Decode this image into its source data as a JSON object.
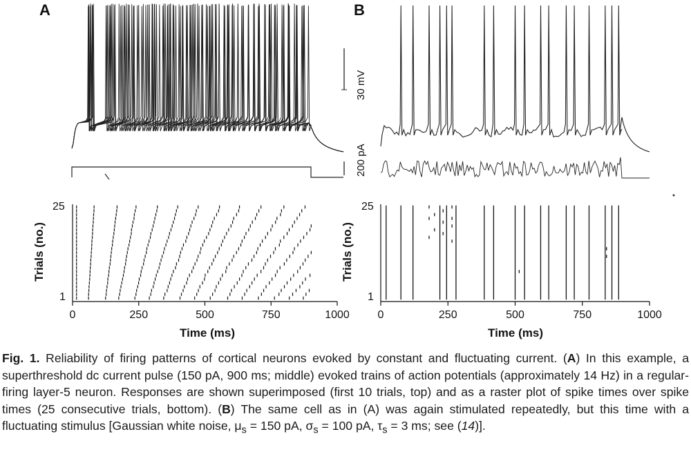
{
  "panel_a": {
    "letter": "A"
  },
  "panel_b": {
    "letter": "B"
  },
  "scale_bars": {
    "voltage": "30 mV",
    "current": "200 pA"
  },
  "raster_axes": {
    "ylabel": "Trials (no.)",
    "xlabel": "Time (ms)",
    "yticks": [
      "1",
      "25"
    ],
    "xticks": [
      "0",
      "250",
      "500",
      "750",
      "1000"
    ]
  },
  "caption": {
    "label": "Fig. 1.",
    "t1": " Reliability of firing patterns of cortical neurons evoked by constant and fluctuating current. (",
    "a1": "A",
    "t2": ") In this example, a superthreshold dc current pulse (150 pA, 900 ms; middle) evoked trains of action potentials (approximately 14 Hz) in a regular-firing layer-5 neuron. Responses are shown superimposed (first 10 trials, top) and as a raster plot of spike times over spike times (25 consecutive trials, bottom). (",
    "b1": "B",
    "t3": ") The same cell as in (A) was again stimulated repeatedly, but this time with a fluctuating stimulus [Gaussian white noise, ",
    "mu": "μ",
    "mu_sub": "s",
    "mu_val": " = 150 pA, ",
    "sigma": "σ",
    "sigma_sub": "s",
    "sigma_val": " = 100 pA, ",
    "tau": "τ",
    "tau_sub": "s",
    "tau_val": " = 3 ms; see (",
    "ref": "14",
    "end": ")]."
  },
  "chart_data": [
    {
      "type": "scatter",
      "panel": "A",
      "title": "",
      "xlabel": "Time (ms)",
      "ylabel": "Trials (no.)",
      "xlim": [
        0,
        1000
      ],
      "ylim": [
        1,
        25
      ],
      "stimulus": "dc current pulse, 150 pA, 900 ms",
      "n_trials": 25,
      "spike_times_trial_1": [
        15,
        60,
        125,
        175,
        235,
        290,
        345,
        405,
        460,
        520,
        585,
        640,
        700,
        765,
        820,
        870
      ],
      "drift_per_trial_ms": [
        0,
        1,
        2,
        3,
        4,
        5,
        6,
        7,
        8,
        9,
        10,
        11,
        12,
        13,
        14,
        15
      ]
    },
    {
      "type": "scatter",
      "panel": "B",
      "title": "",
      "xlabel": "Time (ms)",
      "ylabel": "Trials (no.)",
      "xlim": [
        0,
        1000
      ],
      "ylim": [
        1,
        25
      ],
      "stimulus": "Gaussian white noise, 150 pA mean, 100 pA SD, 3 ms",
      "n_trials": 25,
      "reliable_spike_times": [
        20,
        75,
        120,
        220,
        245,
        280,
        385,
        420,
        500,
        535,
        595,
        625,
        690,
        720,
        775,
        835,
        860,
        885
      ],
      "partial_spikes": [
        {
          "time": 180,
          "trials": [
            17,
            22,
            25
          ]
        },
        {
          "time": 200,
          "trials": [
            19,
            23
          ]
        },
        {
          "time": 232,
          "trials": [
            18,
            21,
            24
          ]
        },
        {
          "time": 265,
          "trials": [
            16,
            20,
            22,
            25
          ]
        },
        {
          "time": 840,
          "trials": [
            14,
            12
          ]
        },
        {
          "time": 515,
          "trials": [
            8
          ]
        }
      ]
    }
  ]
}
